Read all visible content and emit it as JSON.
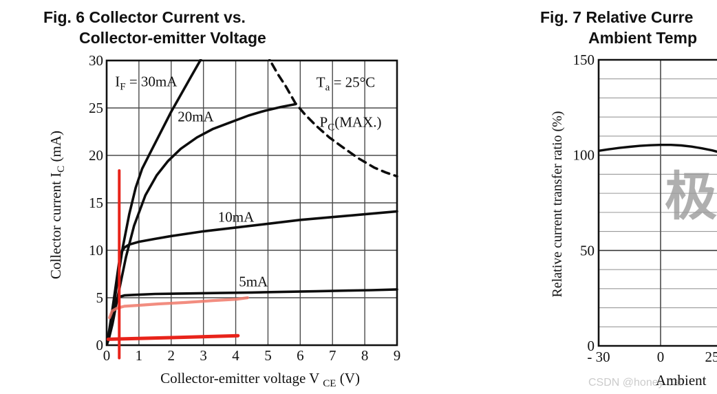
{
  "page": {
    "background": "#ffffff"
  },
  "watermarks": {
    "csdn_text": "CSDN @honey ball",
    "cn_char": "极",
    "csdn_color": "#cbcbcb",
    "char_color": "#9c9c9c"
  },
  "colors": {
    "curve": "#0d0d0d",
    "grid_dark": "#4a4a4a",
    "grid_light": "#999999",
    "grid_major": "#3a3a3a",
    "border": "#111111",
    "red": "#e8231a",
    "pink": "#f0796a",
    "text": "#111111"
  },
  "chart_data": [
    {
      "id": "fig6",
      "type": "line",
      "title": "Fig. 6 Collector Current vs.",
      "title_line2": "Collector-emitter Voltage",
      "xlabel_segments": [
        {
          "t": "Collector-emitter voltage V "
        },
        {
          "t": "CE",
          "sub": true
        },
        {
          "t": " (V)"
        }
      ],
      "ylabel_segments": [
        {
          "t": "Collector current I"
        },
        {
          "t": "C",
          "sub": true
        },
        {
          "t": " (mA)"
        }
      ],
      "xlim": [
        0,
        9
      ],
      "ylim": [
        0,
        30
      ],
      "xticks": [
        0,
        1,
        2,
        3,
        4,
        5,
        6,
        7,
        8,
        9
      ],
      "yticks": [
        0,
        5,
        10,
        15,
        20,
        25,
        30
      ],
      "grid": true,
      "legend_position": "none",
      "series": [
        {
          "name": "IF = 30mA",
          "style": "solid",
          "points": [
            [
              0,
              0
            ],
            [
              0.06,
              0.8
            ],
            [
              0.15,
              2.6
            ],
            [
              0.3,
              6
            ],
            [
              0.5,
              10.3
            ],
            [
              0.7,
              13.8
            ],
            [
              0.9,
              16.6
            ],
            [
              1.1,
              18.6
            ],
            [
              1.4,
              20.6
            ],
            [
              1.7,
              22.6
            ],
            [
              2.0,
              24.6
            ],
            [
              2.3,
              26.4
            ],
            [
              2.6,
              28.2
            ],
            [
              2.9,
              30.0
            ],
            [
              3.0,
              30.9
            ]
          ]
        },
        {
          "name": "IF = 20mA",
          "style": "solid",
          "points": [
            [
              0,
              0
            ],
            [
              0.07,
              0.7
            ],
            [
              0.18,
              2.2
            ],
            [
              0.35,
              5.2
            ],
            [
              0.6,
              9.3
            ],
            [
              0.85,
              12.6
            ],
            [
              1.2,
              15.8
            ],
            [
              1.55,
              17.9
            ],
            [
              1.9,
              19.4
            ],
            [
              2.3,
              20.7
            ],
            [
              2.8,
              21.9
            ],
            [
              3.3,
              22.8
            ],
            [
              3.85,
              23.5
            ],
            [
              4.4,
              24.2
            ],
            [
              4.9,
              24.7
            ],
            [
              5.4,
              25.1
            ],
            [
              5.85,
              25.4
            ]
          ]
        },
        {
          "name": "IF = 10mA",
          "style": "solid",
          "points": [
            [
              0,
              0
            ],
            [
              0.08,
              1.6
            ],
            [
              0.18,
              3.8
            ],
            [
              0.28,
              6.2
            ],
            [
              0.38,
              8.6
            ],
            [
              0.46,
              9.8
            ],
            [
              0.55,
              10.3
            ],
            [
              0.7,
              10.6
            ],
            [
              1.0,
              10.9
            ],
            [
              1.5,
              11.2
            ],
            [
              2.0,
              11.5
            ],
            [
              3.0,
              12.0
            ],
            [
              4.0,
              12.4
            ],
            [
              5.0,
              12.8
            ],
            [
              6.0,
              13.2
            ],
            [
              7.0,
              13.5
            ],
            [
              8.0,
              13.8
            ],
            [
              9.0,
              14.1
            ]
          ]
        },
        {
          "name": "IF = 5mA",
          "style": "solid",
          "points": [
            [
              0,
              0
            ],
            [
              0.06,
              1.0
            ],
            [
              0.14,
              2.6
            ],
            [
              0.22,
              4.0
            ],
            [
              0.3,
              4.8
            ],
            [
              0.4,
              5.1
            ],
            [
              0.55,
              5.25
            ],
            [
              0.8,
              5.3
            ],
            [
              1.5,
              5.4
            ],
            [
              2.5,
              5.45
            ],
            [
              3.5,
              5.5
            ],
            [
              4.5,
              5.55
            ],
            [
              5.5,
              5.62
            ],
            [
              6.5,
              5.68
            ],
            [
              7.5,
              5.75
            ],
            [
              8.2,
              5.8
            ],
            [
              9.0,
              5.88
            ]
          ]
        },
        {
          "name": "PC(MAX.)",
          "style": "dashed",
          "points": [
            [
              4.95,
              30.9
            ],
            [
              5.1,
              29.8
            ],
            [
              5.3,
              28.6
            ],
            [
              5.55,
              27.3
            ],
            [
              5.85,
              25.5
            ],
            [
              6.15,
              24.3
            ],
            [
              6.5,
              23.1
            ],
            [
              6.9,
              21.9
            ],
            [
              7.3,
              20.9
            ],
            [
              7.8,
              19.7
            ],
            [
              8.3,
              18.7
            ],
            [
              8.65,
              18.2
            ],
            [
              9.0,
              17.8
            ]
          ]
        }
      ],
      "annotations": [
        {
          "id": "if-label",
          "segments": [
            {
              "t": "I"
            },
            {
              "t": "F",
              "sub": true
            },
            {
              "t": " = 30mA"
            }
          ],
          "x": 0.26,
          "y": 27.3
        },
        {
          "id": "ta-label",
          "segments": [
            {
              "t": "T"
            },
            {
              "t": "a",
              "sub": true
            },
            {
              "t": " = 25°C"
            }
          ],
          "x": 6.5,
          "y": 27.2
        },
        {
          "id": "label-20ma",
          "segments": [
            {
              "t": "20mA"
            }
          ],
          "x": 2.2,
          "y": 23.6
        },
        {
          "id": "pc-label",
          "segments": [
            {
              "t": "P"
            },
            {
              "t": "C",
              "sub": true
            },
            {
              "t": "(MAX.)"
            }
          ],
          "x": 6.6,
          "y": 23.0
        },
        {
          "id": "label-10ma",
          "segments": [
            {
              "t": "10mA"
            }
          ],
          "x": 3.45,
          "y": 13.0
        },
        {
          "id": "label-5ma",
          "segments": [
            {
              "t": "5mA"
            }
          ],
          "x": 4.1,
          "y": 6.2
        }
      ],
      "red_marks": {
        "vline": {
          "x": 0.39,
          "y1": -1.35,
          "y2": 18.4
        },
        "hline": {
          "points": [
            [
              0.05,
              0.62
            ],
            [
              2.0,
              0.8
            ],
            [
              4.07,
              1.0
            ]
          ]
        },
        "trace": {
          "points": [
            [
              0.09,
              2.9
            ],
            [
              0.17,
              3.6
            ],
            [
              0.32,
              3.9
            ],
            [
              0.55,
              4.1
            ],
            [
              1.0,
              4.2
            ],
            [
              1.6,
              4.35
            ],
            [
              2.45,
              4.5
            ],
            [
              3.3,
              4.7
            ],
            [
              4.05,
              4.85
            ],
            [
              4.37,
              5.0
            ]
          ]
        }
      }
    },
    {
      "id": "fig7",
      "type": "line",
      "title": "Fig. 7 Relative Curre",
      "title_line2": "Ambient Temp",
      "xlabel": "Ambient",
      "ylabel": "Relative current transfer ratio (%)",
      "xlim": [
        -30,
        27.4
      ],
      "ylim": [
        0,
        150
      ],
      "xticks": [
        {
          "v": -30,
          "label": "- 30"
        },
        {
          "v": 0,
          "label": "0"
        },
        {
          "v": 25,
          "label": "25"
        }
      ],
      "yticks": [
        0,
        50,
        100,
        150
      ],
      "minor_y_step": 10,
      "grid": true,
      "legend_position": "none",
      "series": [
        {
          "name": "Relative CTR",
          "style": "solid",
          "points": [
            [
              -30,
              102.3
            ],
            [
              -25,
              103.1
            ],
            [
              -20,
              103.8
            ],
            [
              -15,
              104.4
            ],
            [
              -10,
              104.9
            ],
            [
              -5,
              105.2
            ],
            [
              0,
              105.4
            ],
            [
              5,
              105.4
            ],
            [
              10,
              105.1
            ],
            [
              15,
              104.5
            ],
            [
              20,
              103.6
            ],
            [
              25,
              102.5
            ],
            [
              27.5,
              101.8
            ]
          ]
        }
      ],
      "annotations": []
    }
  ]
}
